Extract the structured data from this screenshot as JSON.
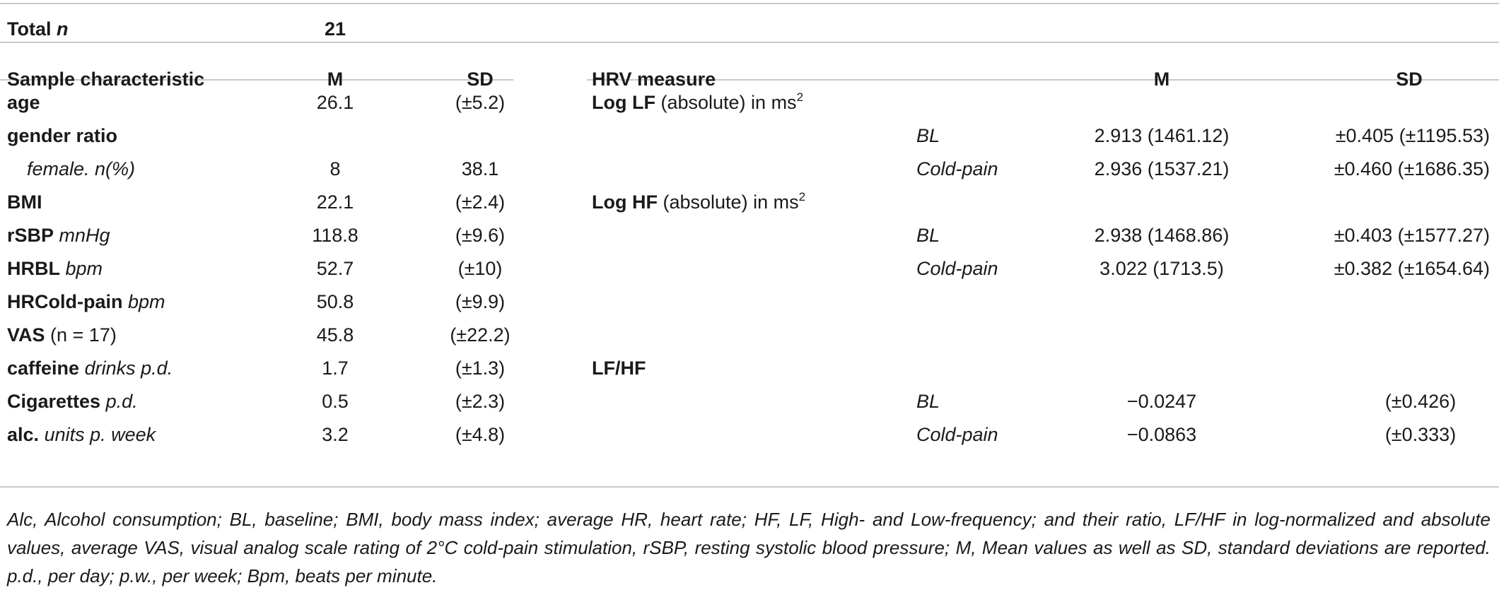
{
  "total": {
    "label": "Total",
    "label_n": "n",
    "value": "21"
  },
  "left_table": {
    "headers": {
      "characteristic": "Sample characteristic",
      "m": "M",
      "sd": "SD"
    },
    "rows": [
      {
        "name": "age",
        "unit": "",
        "m": "26.1",
        "sd": "(±5.2)"
      },
      {
        "name": "gender ratio",
        "unit": "",
        "m": "",
        "sd": ""
      },
      {
        "name": "",
        "unit": "female. n(%)",
        "m": "8",
        "sd": "38.1"
      },
      {
        "name": "BMI",
        "unit": "",
        "m": "22.1",
        "sd": "(±2.4)"
      },
      {
        "name": "rSBP",
        "unit": "mnHg",
        "m": "118.8",
        "sd": "(±9.6)"
      },
      {
        "name": "HRBL",
        "unit": "bpm",
        "m": "52.7",
        "sd": "(±10)"
      },
      {
        "name": "HRCold-pain",
        "unit": "bpm",
        "m": "50.8",
        "sd": "(±9.9)"
      },
      {
        "name": "VAS",
        "unit": "(n = 17)",
        "m": "45.8",
        "sd": "(±22.2)"
      },
      {
        "name": "caffeine",
        "unit": "drinks p.d.",
        "m": "1.7",
        "sd": "(±1.3)"
      },
      {
        "name": "Cigarettes",
        "unit": "p.d.",
        "m": "0.5",
        "sd": "(±2.3)"
      },
      {
        "name": "alc.",
        "unit": "units p. week",
        "m": "3.2",
        "sd": "(±4.8)"
      }
    ]
  },
  "right_table": {
    "headers": {
      "measure": "HRV measure",
      "m": "M",
      "sd": "SD"
    },
    "groups": [
      {
        "name": "Log LF",
        "desc": "(absolute) in ms",
        "sup": "2",
        "rows": [
          {
            "cond": "BL",
            "m": "2.913 (1461.12)",
            "sd": "±0.405 (±1195.53)"
          },
          {
            "cond": "Cold-pain",
            "m": "2.936 (1537.21)",
            "sd": "±0.460 (±1686.35)"
          }
        ]
      },
      {
        "name": "Log HF",
        "desc": "(absolute) in ms",
        "sup": "2",
        "rows": [
          {
            "cond": "BL",
            "m": "2.938 (1468.86)",
            "sd": "±0.403 (±1577.27)"
          },
          {
            "cond": "Cold-pain",
            "m": "3.022 (1713.5)",
            "sd": "±0.382 (±1654.64)"
          }
        ]
      },
      {
        "name": "LF/HF",
        "desc": "",
        "sup": "",
        "rows": [
          {
            "cond": "BL",
            "m": "−0.0247",
            "sd": "(±0.426)"
          },
          {
            "cond": "Cold-pain",
            "m": "−0.0863",
            "sd": "(±0.333)"
          }
        ]
      }
    ]
  },
  "footnote": "Alc, Alcohol consumption; BL, baseline; BMI, body mass index; average HR, heart rate; HF, LF, High- and Low-frequency; and their ratio, LF/HF in log-normalized and absolute values, average VAS, visual analog scale rating of 2°C cold-pain stimulation, rSBP, resting systolic blood pressure; M, Mean values as well as SD, standard deviations are reported. p.d., per day; p.w., per week; Bpm, beats per minute."
}
